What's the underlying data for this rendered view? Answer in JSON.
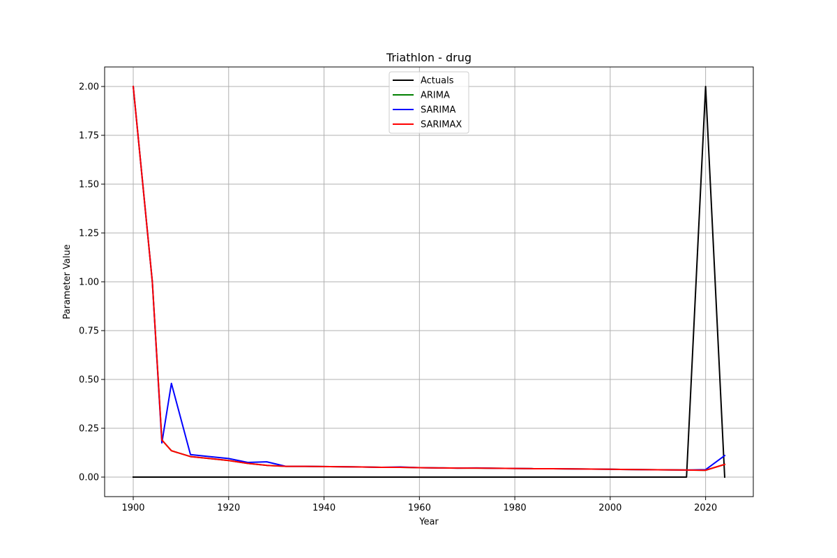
{
  "chart_data": {
    "type": "line",
    "title": "Triathlon - drug",
    "xlabel": "Year",
    "ylabel": "Parameter Value",
    "xlim": [
      1894,
      2030
    ],
    "ylim": [
      -0.1,
      2.1
    ],
    "xticks": [
      1900,
      1920,
      1940,
      1960,
      1980,
      2000,
      2020
    ],
    "yticks": [
      0.0,
      0.25,
      0.5,
      0.75,
      1.0,
      1.25,
      1.5,
      1.75,
      2.0
    ],
    "ytick_labels": [
      "0.00",
      "0.25",
      "0.50",
      "0.75",
      "1.00",
      "1.25",
      "1.50",
      "1.75",
      "2.00"
    ],
    "grid": true,
    "legend_position": "top-center",
    "series": [
      {
        "name": "Actuals",
        "color": "#000000",
        "x": [
          1900,
          1904,
          1908,
          1912,
          1916,
          1920,
          1924,
          1928,
          1932,
          1936,
          1948,
          1952,
          1956,
          1960,
          1964,
          1968,
          1972,
          1976,
          1980,
          1984,
          1988,
          1992,
          1996,
          2000,
          2004,
          2008,
          2012,
          2016,
          2020,
          2024
        ],
        "y": [
          0,
          0,
          0,
          0,
          0,
          0,
          0,
          0,
          0,
          0,
          0,
          0,
          0,
          0,
          0,
          0,
          0,
          0,
          0,
          0,
          0,
          0,
          0,
          0,
          0,
          0,
          0,
          0,
          2.0,
          0
        ]
      },
      {
        "name": "ARIMA",
        "color": "#008000",
        "x": [
          1900,
          1904,
          1906,
          1908,
          1912,
          1916,
          1920,
          1924,
          1928,
          1932,
          1936,
          1948,
          1952,
          1956,
          1960,
          1964,
          1968,
          1972,
          1976,
          1980,
          1984,
          1988,
          1992,
          1996,
          2000,
          2004,
          2008,
          2012,
          2016,
          2020,
          2024
        ],
        "y": [
          2.0,
          1.0,
          0.19,
          0.135,
          0.105,
          0.095,
          0.085,
          0.07,
          0.06,
          0.055,
          0.055,
          0.052,
          0.05,
          0.05,
          0.048,
          0.047,
          0.046,
          0.046,
          0.045,
          0.044,
          0.043,
          0.043,
          0.042,
          0.041,
          0.04,
          0.039,
          0.038,
          0.037,
          0.036,
          0.035,
          0.065
        ]
      },
      {
        "name": "SARIMA",
        "color": "#0000ff",
        "x": [
          1900,
          1904,
          1906,
          1908,
          1912,
          1916,
          1920,
          1924,
          1928,
          1932,
          1936,
          1948,
          1952,
          1956,
          1960,
          1964,
          1968,
          1972,
          1976,
          1980,
          1984,
          1988,
          1992,
          1996,
          2000,
          2004,
          2008,
          2012,
          2016,
          2020,
          2024
        ],
        "y": [
          2.0,
          1.0,
          0.175,
          0.48,
          0.115,
          0.105,
          0.095,
          0.075,
          0.078,
          0.055,
          0.055,
          0.052,
          0.05,
          0.052,
          0.048,
          0.047,
          0.046,
          0.047,
          0.045,
          0.044,
          0.043,
          0.043,
          0.042,
          0.041,
          0.04,
          0.039,
          0.038,
          0.037,
          0.036,
          0.038,
          0.11
        ]
      },
      {
        "name": "SARIMAX",
        "color": "#ff0000",
        "x": [
          1900,
          1904,
          1906,
          1908,
          1912,
          1916,
          1920,
          1924,
          1928,
          1932,
          1936,
          1948,
          1952,
          1956,
          1960,
          1964,
          1968,
          1972,
          1976,
          1980,
          1984,
          1988,
          1992,
          1996,
          2000,
          2004,
          2008,
          2012,
          2016,
          2020,
          2024
        ],
        "y": [
          2.0,
          1.0,
          0.19,
          0.135,
          0.105,
          0.095,
          0.085,
          0.07,
          0.06,
          0.055,
          0.055,
          0.052,
          0.05,
          0.05,
          0.048,
          0.047,
          0.046,
          0.046,
          0.045,
          0.044,
          0.043,
          0.043,
          0.042,
          0.041,
          0.04,
          0.039,
          0.038,
          0.037,
          0.036,
          0.035,
          0.065
        ]
      }
    ]
  }
}
